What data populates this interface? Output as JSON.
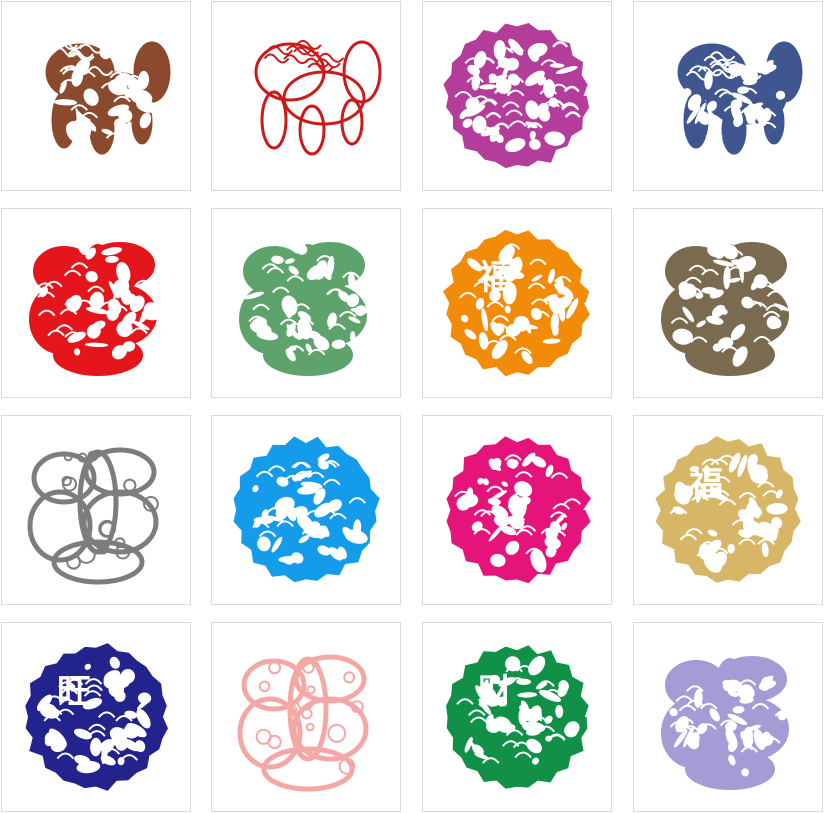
{
  "gallery": {
    "tiles": [
      {
        "subject": "lion-paper-cut",
        "shape": "beast",
        "color": "#8b4a2e",
        "glyph": ""
      },
      {
        "subject": "qilin-outline-paper-cut",
        "shape": "beast-outline",
        "color": "#cc1a1a",
        "glyph": ""
      },
      {
        "subject": "qilin-round-paper-cut",
        "shape": "beast-round",
        "color": "#b43c9a",
        "glyph": ""
      },
      {
        "subject": "guardian-lion-paper-cut",
        "shape": "beast",
        "color": "#3f5691",
        "glyph": ""
      },
      {
        "subject": "fu-character-paper-cut",
        "shape": "fu-char",
        "color": "#e5151c",
        "glyph": ""
      },
      {
        "subject": "fu-character-paper-cut",
        "shape": "fu-char",
        "color": "#5ea36c",
        "glyph": ""
      },
      {
        "subject": "round-paper-cut",
        "shape": "round-glyph",
        "color": "#f18b08",
        "glyph": "福"
      },
      {
        "subject": "dragon-fu-paper-cut",
        "shape": "fu-char",
        "color": "#7a6a4f",
        "glyph": ""
      },
      {
        "subject": "fu-character-outline-paper-cut",
        "shape": "fu-outline",
        "color": "#7d7d7d",
        "glyph": ""
      },
      {
        "subject": "round-paper-cut",
        "shape": "round",
        "color": "#149bea",
        "glyph": ""
      },
      {
        "subject": "round-paper-cut",
        "shape": "round",
        "color": "#e4147b",
        "glyph": ""
      },
      {
        "subject": "round-paper-cut",
        "shape": "round-glyph",
        "color": "#d7b767",
        "glyph": "福"
      },
      {
        "subject": "wang-round-paper-cut",
        "shape": "round-glyph",
        "color": "#22238c",
        "glyph": "旺"
      },
      {
        "subject": "fu-character-paper-cut",
        "shape": "fu-outline",
        "color": "#f3a8a6",
        "glyph": ""
      },
      {
        "subject": "cai-round-paper-cut",
        "shape": "round-glyph",
        "color": "#109147",
        "glyph": "财"
      },
      {
        "subject": "fu-character-paper-cut",
        "shape": "fu-char",
        "color": "#a79bd6",
        "glyph": ""
      }
    ]
  }
}
